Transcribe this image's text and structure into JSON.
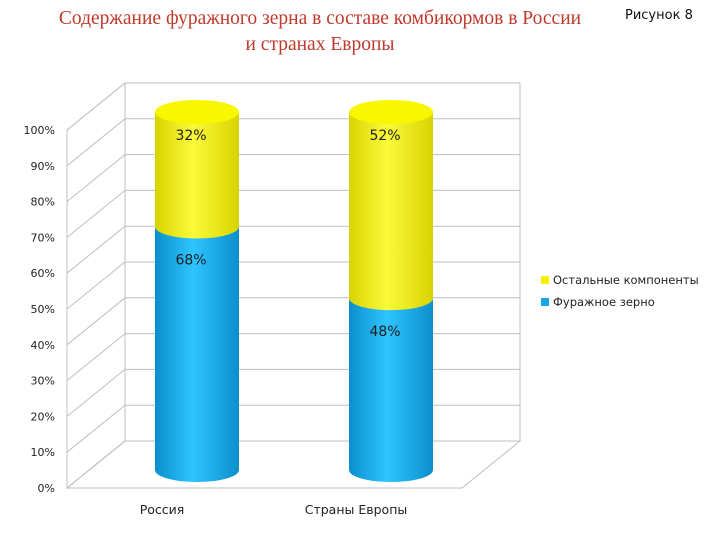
{
  "header": {
    "title_line1": "Содержание фуражного зерна в составе комбикормов в России",
    "title_line2": "и странах Европы",
    "figure_label": "Рисунок 8"
  },
  "colors": {
    "title": "#c0392b",
    "series_bottom": "#16a6e4",
    "series_top": "#f5f200",
    "grid": "#bfbfbf"
  },
  "chart_data": {
    "type": "bar",
    "stacked": true,
    "percent": true,
    "categories": [
      "Россия",
      "Страны Европы"
    ],
    "series": [
      {
        "name": "Фуражное зерно",
        "values": [
          68,
          48
        ],
        "labels": [
          "68%",
          "48%"
        ],
        "color": "#16a6e4"
      },
      {
        "name": "Остальные компоненты",
        "values": [
          32,
          52
        ],
        "labels": [
          "32%",
          "52%"
        ],
        "color": "#f5f200"
      }
    ],
    "y_ticks": [
      "0%",
      "10%",
      "20%",
      "30%",
      "40%",
      "50%",
      "60%",
      "70%",
      "80%",
      "90%",
      "100%"
    ],
    "ylim": [
      0,
      100
    ],
    "grid": true,
    "legend_position": "right",
    "legend": [
      "Остальные компоненты",
      "Фуражное зерно"
    ]
  }
}
